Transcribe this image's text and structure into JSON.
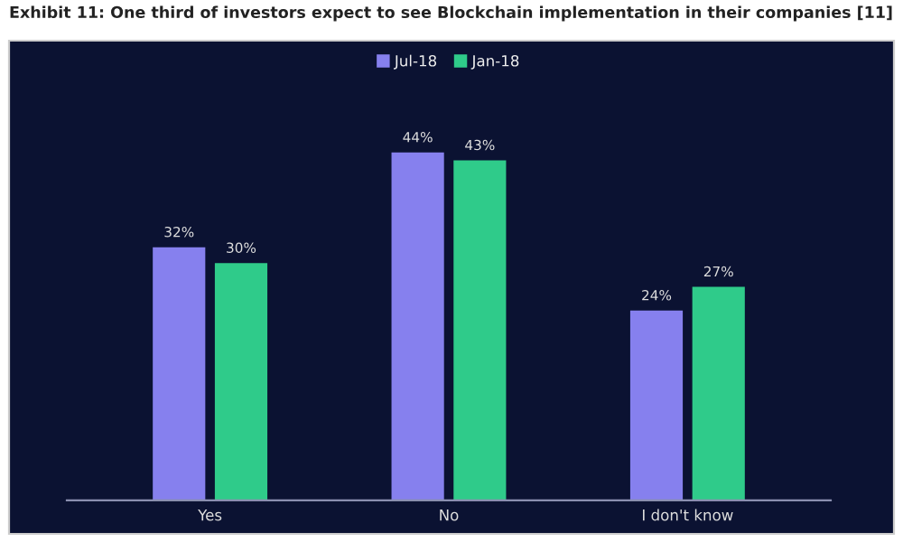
{
  "chart_data": {
    "type": "bar",
    "title": "Exhibit 11: One third of investors expect to see Blockchain implementation in their companies [11]",
    "categories": [
      "Yes",
      "No",
      "I don't know"
    ],
    "series": [
      {
        "name": "Jul-18",
        "color": "#8680ee",
        "values": [
          32,
          44,
          24
        ],
        "value_labels": [
          "32%",
          "44%",
          "24%"
        ]
      },
      {
        "name": "Jan-18",
        "color": "#2fcb8a",
        "values": [
          30,
          43,
          27
        ],
        "value_labels": [
          "30%",
          "43%",
          "27%"
        ]
      }
    ],
    "legend": "top"
  }
}
